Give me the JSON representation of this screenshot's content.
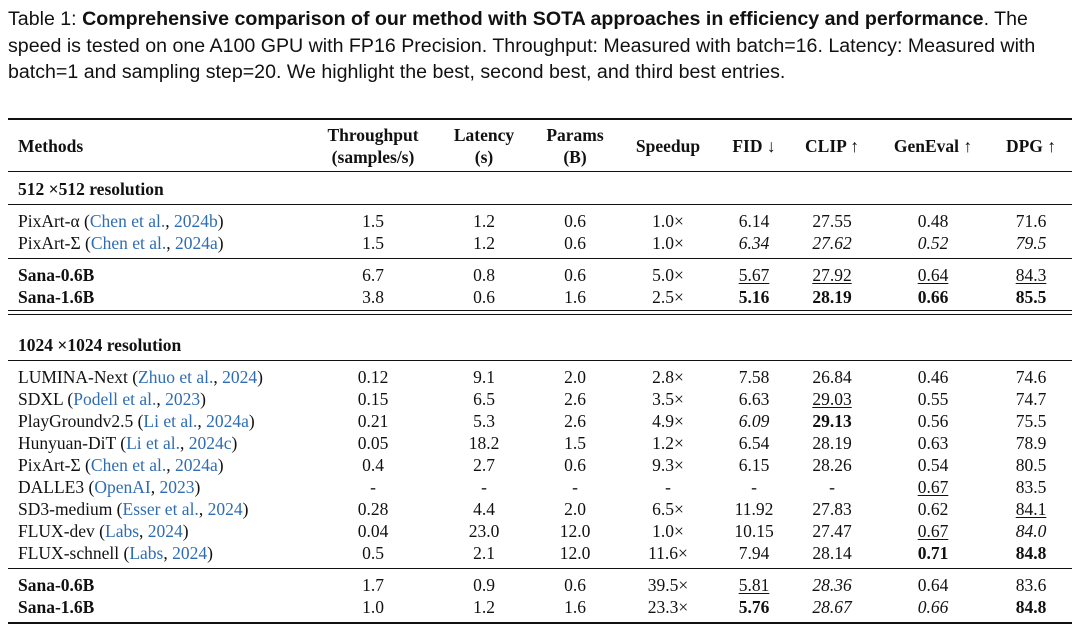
{
  "caption": {
    "label": "Table 1: ",
    "bold": "Comprehensive comparison of our method with SOTA approaches in efficiency and performance",
    "rest": ". The speed is tested on one A100 GPU with FP16 Precision. Throughput: Measured with batch=16. Latency: Measured with batch=1 and sampling step=20. We highlight the best, second best, and third best entries."
  },
  "table": {
    "header": [
      [
        "Methods"
      ],
      [
        "Throughput",
        "(samples/s)"
      ],
      [
        "Latency",
        "(s)"
      ],
      [
        "Params",
        "(B)"
      ],
      [
        "Speedup"
      ],
      [
        "FID ↓"
      ],
      [
        "CLIP ↑"
      ],
      [
        "GenEval ↑"
      ],
      [
        "DPG ↑"
      ]
    ],
    "sections": [
      {
        "title": "512 ×512 resolution",
        "groups": [
          [
            {
              "method": [
                "PixArt-α (",
                "Chen et al.",
                ", ",
                "2024b",
                ")"
              ],
              "cells": [
                "1.5",
                "1.2",
                "0.6",
                "1.0×",
                "6.14",
                "27.55",
                "0.48",
                "71.6"
              ]
            },
            {
              "method": [
                "PixArt-Σ (",
                "Chen et al.",
                ", ",
                "2024a",
                ")"
              ],
              "cells": [
                "1.5",
                "1.2",
                "0.6",
                "1.0×",
                {
                  "text": "6.34",
                  "style": "italic"
                },
                {
                  "text": "27.62",
                  "style": "italic"
                },
                {
                  "text": "0.52",
                  "style": "italic"
                },
                {
                  "text": "79.5",
                  "style": "italic"
                }
              ]
            }
          ],
          [
            {
              "method": [
                "Sana-0.6B"
              ],
              "method_style": "bold",
              "cells": [
                "6.7",
                "0.8",
                "0.6",
                "5.0×",
                {
                  "text": "5.67",
                  "style": "underline"
                },
                {
                  "text": "27.92",
                  "style": "underline"
                },
                {
                  "text": "0.64",
                  "style": "underline"
                },
                {
                  "text": "84.3",
                  "style": "underline"
                }
              ]
            },
            {
              "method": [
                "Sana-1.6B"
              ],
              "method_style": "bold",
              "cells": [
                "3.8",
                "0.6",
                "1.6",
                "2.5×",
                {
                  "text": "5.16",
                  "style": "bold"
                },
                {
                  "text": "28.19",
                  "style": "bold"
                },
                {
                  "text": "0.66",
                  "style": "bold"
                },
                {
                  "text": "85.5",
                  "style": "bold"
                }
              ]
            }
          ]
        ]
      },
      {
        "title": "1024 ×1024 resolution",
        "groups": [
          [
            {
              "method": [
                "LUMINA-Next (",
                "Zhuo et al.",
                ", ",
                "2024",
                ")"
              ],
              "cells": [
                "0.12",
                "9.1",
                "2.0",
                "2.8×",
                "7.58",
                "26.84",
                "0.46",
                "74.6"
              ]
            },
            {
              "method": [
                "SDXL (",
                "Podell et al.",
                ", ",
                "2023",
                ")"
              ],
              "cells": [
                "0.15",
                "6.5",
                "2.6",
                "3.5×",
                "6.63",
                {
                  "text": "29.03",
                  "style": "underline"
                },
                "0.55",
                "74.7"
              ]
            },
            {
              "method": [
                "PlayGroundv2.5 (",
                "Li et al.",
                ", ",
                "2024a",
                ")"
              ],
              "cells": [
                "0.21",
                "5.3",
                "2.6",
                "4.9×",
                {
                  "text": "6.09",
                  "style": "italic"
                },
                {
                  "text": "29.13",
                  "style": "bold"
                },
                "0.56",
                "75.5"
              ]
            },
            {
              "method": [
                "Hunyuan-DiT (",
                "Li et al.",
                ", ",
                "2024c",
                ")"
              ],
              "cells": [
                "0.05",
                "18.2",
                "1.5",
                "1.2×",
                "6.54",
                "28.19",
                "0.63",
                "78.9"
              ]
            },
            {
              "method": [
                "PixArt-Σ (",
                "Chen et al.",
                ", ",
                "2024a",
                ")"
              ],
              "cells": [
                "0.4",
                "2.7",
                "0.6",
                "9.3×",
                "6.15",
                "28.26",
                "0.54",
                "80.5"
              ]
            },
            {
              "method": [
                "DALLE3 (",
                "OpenAI",
                ", ",
                "2023",
                ")"
              ],
              "cells": [
                "-",
                "-",
                "-",
                "-",
                "-",
                "-",
                {
                  "text": "0.67",
                  "style": "underline"
                },
                "83.5"
              ]
            },
            {
              "method": [
                "SD3-medium (",
                "Esser et al.",
                ", ",
                "2024",
                ")"
              ],
              "cells": [
                "0.28",
                "4.4",
                "2.0",
                "6.5×",
                "11.92",
                "27.83",
                "0.62",
                {
                  "text": "84.1",
                  "style": "underline"
                }
              ]
            },
            {
              "method": [
                "FLUX-dev (",
                "Labs",
                ", ",
                "2024",
                ")"
              ],
              "cells": [
                "0.04",
                "23.0",
                "12.0",
                "1.0×",
                "10.15",
                "27.47",
                {
                  "text": "0.67",
                  "style": "underline"
                },
                {
                  "text": "84.0",
                  "style": "italic"
                }
              ]
            },
            {
              "method": [
                "FLUX-schnell (",
                "Labs",
                ", ",
                "2024",
                ")"
              ],
              "cells": [
                "0.5",
                "2.1",
                "12.0",
                "11.6×",
                "7.94",
                "28.14",
                {
                  "text": "0.71",
                  "style": "bold"
                },
                {
                  "text": "84.8",
                  "style": "bold"
                }
              ]
            }
          ],
          [
            {
              "method": [
                "Sana-0.6B"
              ],
              "method_style": "bold",
              "cells": [
                "1.7",
                "0.9",
                "0.6",
                "39.5×",
                {
                  "text": "5.81",
                  "style": "underline"
                },
                {
                  "text": "28.36",
                  "style": "italic"
                },
                "0.64",
                "83.6"
              ]
            },
            {
              "method": [
                "Sana-1.6B"
              ],
              "method_style": "bold",
              "cells": [
                "1.0",
                "1.2",
                "1.6",
                "23.3×",
                {
                  "text": "5.76",
                  "style": "bold"
                },
                {
                  "text": "28.67",
                  "style": "italic"
                },
                {
                  "text": "0.66",
                  "style": "italic"
                },
                {
                  "text": "84.8",
                  "style": "bold"
                }
              ]
            }
          ]
        ]
      }
    ]
  }
}
